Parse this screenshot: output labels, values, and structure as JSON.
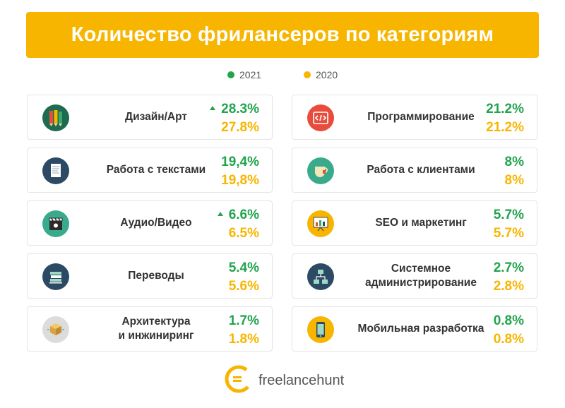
{
  "title": "Количество фрилансеров по категориям",
  "legend": [
    {
      "label": "2021",
      "color": "#21a44d"
    },
    {
      "label": "2020",
      "color": "#f7b500"
    }
  ],
  "colors": {
    "year_2021": "#21a44d",
    "year_2020": "#f7b500",
    "title_bg": "#f7b500"
  },
  "cards": [
    {
      "label": "Дизайн/Арт",
      "v2021": "28.3%",
      "v2020": "27.8%",
      "up": true,
      "icon": "pencils-icon"
    },
    {
      "label": "Программирование",
      "v2021": "21.2%",
      "v2020": "21.2%",
      "up": false,
      "icon": "code-icon"
    },
    {
      "label": "Работа с текстами",
      "v2021": "19,4%",
      "v2020": "19,8%",
      "up": false,
      "icon": "document-icon"
    },
    {
      "label": "Работа с клиентами",
      "v2021": "8%",
      "v2020": "8%",
      "up": false,
      "icon": "tea-cup-icon"
    },
    {
      "label": "Аудио/Видео",
      "v2021": "6.6%",
      "v2020": "6.5%",
      "up": true,
      "icon": "clapperboard-icon"
    },
    {
      "label": "SEO и маркетинг",
      "v2021": "5.7%",
      "v2020": "5.7%",
      "up": false,
      "icon": "presentation-chart-icon"
    },
    {
      "label": "Переводы",
      "v2021": "5.4%",
      "v2020": "5.6%",
      "up": false,
      "icon": "books-icon"
    },
    {
      "label": "Системное\nадминистрирование",
      "v2021": "2.7%",
      "v2020": "2.8%",
      "up": false,
      "icon": "network-icon"
    },
    {
      "label": "Архитектура\nи инжиниринг",
      "v2021": "1.7%",
      "v2020": "1.8%",
      "up": false,
      "icon": "box-icon"
    },
    {
      "label": "Мобильная разработка",
      "v2021": "0.8%",
      "v2020": "0.8%",
      "up": false,
      "icon": "smartphone-icon"
    }
  ],
  "chart_data": {
    "type": "table",
    "title": "Количество фрилансеров по категориям",
    "columns": [
      "2021",
      "2020"
    ],
    "categories": [
      "Дизайн/Арт",
      "Программирование",
      "Работа с текстами",
      "Работа с клиентами",
      "Аудио/Видео",
      "SEO и маркетинг",
      "Переводы",
      "Системное администрирование",
      "Архитектура и инжиниринг",
      "Мобильная разработка"
    ],
    "series": [
      {
        "name": "2021",
        "values": [
          28.3,
          21.2,
          19.4,
          8,
          6.6,
          5.7,
          5.4,
          2.7,
          1.7,
          0.8
        ]
      },
      {
        "name": "2020",
        "values": [
          27.8,
          21.2,
          19.8,
          8,
          6.5,
          5.7,
          5.6,
          2.8,
          1.8,
          0.8
        ]
      }
    ],
    "legend": "top-center"
  },
  "brand": {
    "name": "freelancehunt"
  }
}
